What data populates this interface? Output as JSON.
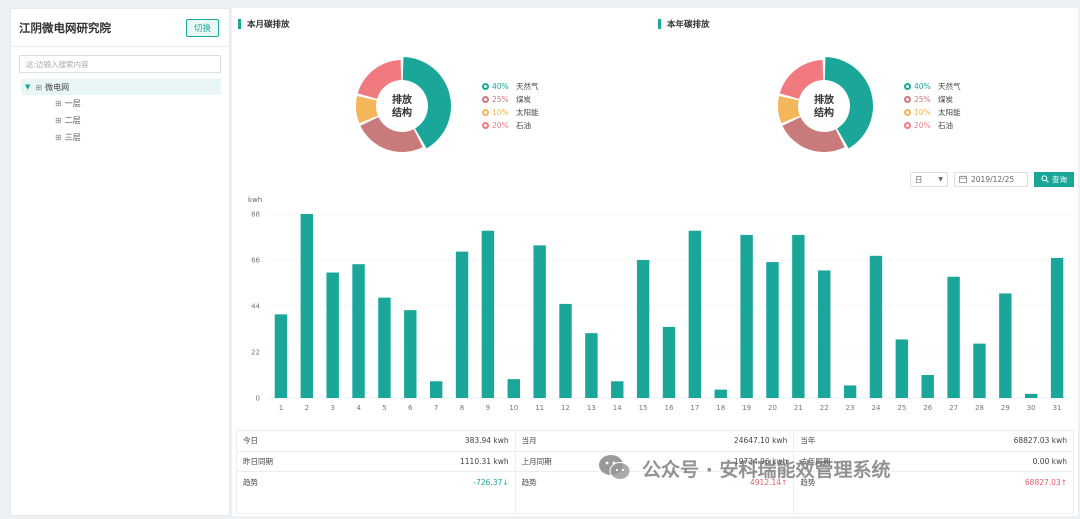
{
  "sidebar": {
    "title": "江阴微电网研究院",
    "switch_label": "切换",
    "search_placeholder": "这:边输入搜索内容",
    "tree": {
      "root": "微电网",
      "children": [
        "一层",
        "二层",
        "三层"
      ]
    }
  },
  "monthly": {
    "title": "本月碳排放",
    "center": [
      "排放",
      "结构"
    ],
    "legend": [
      {
        "pct": "40%",
        "name": "天然气",
        "color": "#1aa79a"
      },
      {
        "pct": "25%",
        "name": "煤炭",
        "color": "#c97b7b"
      },
      {
        "pct": "10%",
        "name": "太阳能",
        "color": "#f3b65a"
      },
      {
        "pct": "20%",
        "name": "石油",
        "color": "#f07a80"
      }
    ]
  },
  "yearly": {
    "title": "本年碳排放",
    "center": [
      "排放",
      "结构"
    ],
    "legend": [
      {
        "pct": "40%",
        "name": "天然气",
        "color": "#1aa79a"
      },
      {
        "pct": "25%",
        "name": "煤炭",
        "color": "#c97b7b"
      },
      {
        "pct": "10%",
        "name": "太阳能",
        "color": "#f3b65a"
      },
      {
        "pct": "20%",
        "name": "石油",
        "color": "#f07a80"
      }
    ]
  },
  "toolbar": {
    "period": "日",
    "date": "2019/12/25",
    "query_label": "查询"
  },
  "chart_data": {
    "type": "bar",
    "ylabel": "kwh",
    "yticks": [
      "0",
      "22",
      "44",
      "66",
      "88"
    ],
    "ylim": [
      0,
      88
    ],
    "grid": true,
    "color": "#1aa79a",
    "categories": [
      "1",
      "2",
      "3",
      "4",
      "5",
      "6",
      "7",
      "8",
      "9",
      "10",
      "11",
      "12",
      "13",
      "14",
      "15",
      "16",
      "17",
      "18",
      "19",
      "20",
      "21",
      "22",
      "23",
      "24",
      "25",
      "26",
      "27",
      "28",
      "29",
      "30",
      "31"
    ],
    "values": [
      40,
      88,
      60,
      64,
      48,
      42,
      8,
      70,
      80,
      9,
      73,
      45,
      31,
      8,
      66,
      34,
      80,
      4,
      78,
      65,
      78,
      61,
      6,
      68,
      28,
      11,
      58,
      26,
      50,
      2,
      67
    ]
  },
  "stats": [
    [
      {
        "label": "今日",
        "value": "383.94  kwh",
        "cls": ""
      },
      {
        "label": "昨日同期",
        "value": "1110.31  kwh",
        "cls": ""
      },
      {
        "label": "趋势",
        "value": "-726.37↓",
        "cls": "down"
      }
    ],
    [
      {
        "label": "当月",
        "value": "24647.10 kwh",
        "cls": ""
      },
      {
        "label": "上月同期",
        "value": "19734.96  kwh",
        "cls": ""
      },
      {
        "label": "趋势",
        "value": "4912.14↑",
        "cls": "up"
      }
    ],
    [
      {
        "label": "当年",
        "value": "68827.03 kwh",
        "cls": ""
      },
      {
        "label": "去年同期",
        "value": "0.00  kwh",
        "cls": ""
      },
      {
        "label": "趋势",
        "value": "68827.03↑",
        "cls": "up"
      }
    ]
  ],
  "watermark": "公众号 · 安科瑞能效管理系统"
}
